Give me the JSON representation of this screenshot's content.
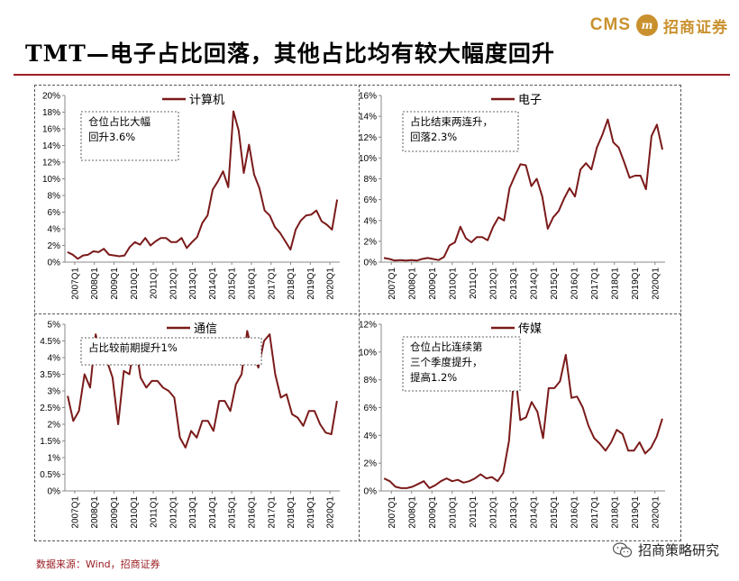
{
  "header": {
    "title": "TMT—电子占比回落，其他占比均有较大幅度回升",
    "brand_cms": "CMS",
    "brand_logo_text": "m",
    "brand_name": "招商证券"
  },
  "footer": {
    "source": "数据来源：Wind，招商证券",
    "wechat_name": "招商策略研究"
  },
  "colors": {
    "line": "#7b1a1a",
    "accent": "#9b1e23",
    "brand": "#c9912e"
  },
  "chart_data": [
    {
      "type": "line",
      "series_name": "计算机",
      "annotation": [
        "仓位占比大幅",
        "回升3.6%"
      ],
      "ylim": [
        0,
        20
      ],
      "ystep": 2,
      "yunit": "%",
      "x_ticks": [
        "2007Q1",
        "2008Q1",
        "2009Q1",
        "2010Q1",
        "2011Q1",
        "2012Q1",
        "2013Q1",
        "2014Q1",
        "2015Q1",
        "2016Q1",
        "2017Q1",
        "2018Q1",
        "2019Q1",
        "2020Q1"
      ],
      "values": [
        1.2,
        0.9,
        0.4,
        0.8,
        0.9,
        1.3,
        1.2,
        1.6,
        0.9,
        0.8,
        0.7,
        0.8,
        1.8,
        2.4,
        2.1,
        2.9,
        2.0,
        2.5,
        2.9,
        2.9,
        2.4,
        2.4,
        2.9,
        1.7,
        2.4,
        3.0,
        4.7,
        5.6,
        8.7,
        9.7,
        10.9,
        9.0,
        18.1,
        15.8,
        10.7,
        14.1,
        10.5,
        8.9,
        6.2,
        5.6,
        4.2,
        3.5,
        2.5,
        1.5,
        3.9,
        5.0,
        5.6,
        5.7,
        6.2,
        4.9,
        4.5,
        3.9,
        7.5
      ]
    },
    {
      "type": "line",
      "series_name": "电子",
      "annotation": [
        "占比结束两连升，",
        "回落2.3%"
      ],
      "ylim": [
        0,
        16
      ],
      "ystep": 2,
      "yunit": "%",
      "x_ticks": [
        "2007Q1",
        "2008Q1",
        "2009Q1",
        "2010Q1",
        "2011Q1",
        "2012Q1",
        "2013Q1",
        "2014Q1",
        "2015Q1",
        "2016Q1",
        "2017Q1",
        "2018Q1",
        "2019Q1",
        "2020Q1"
      ],
      "values": [
        0.4,
        0.3,
        0.15,
        0.2,
        0.15,
        0.2,
        0.15,
        0.3,
        0.4,
        0.3,
        0.2,
        0.5,
        1.6,
        1.9,
        3.4,
        2.3,
        1.9,
        2.4,
        2.4,
        2.1,
        3.4,
        4.3,
        4.0,
        7.1,
        8.3,
        9.4,
        9.3,
        7.3,
        8.0,
        6.3,
        3.2,
        4.3,
        4.9,
        6.1,
        7.1,
        6.3,
        8.9,
        9.5,
        8.9,
        11.0,
        12.2,
        13.7,
        11.5,
        11.0,
        9.6,
        8.1,
        8.3,
        8.3,
        7.0,
        12.1,
        13.2,
        10.8
      ]
    },
    {
      "type": "line",
      "series_name": "通信",
      "annotation": [
        "占比较前期提升1%"
      ],
      "ylim": [
        0,
        5
      ],
      "ystep": 0.5,
      "yunit": "%",
      "x_ticks": [
        "2007Q1",
        "2008Q1",
        "2009Q1",
        "2010Q1",
        "2011Q1",
        "2012Q1",
        "2013Q1",
        "2014Q1",
        "2015Q1",
        "2016Q1",
        "2017Q1",
        "2018Q1",
        "2019Q1",
        "2020Q1"
      ],
      "values": [
        2.85,
        2.1,
        2.4,
        3.5,
        3.1,
        4.7,
        3.9,
        3.9,
        3.4,
        2.0,
        3.6,
        3.5,
        4.5,
        3.4,
        3.1,
        3.3,
        3.3,
        3.1,
        3.0,
        2.8,
        1.6,
        1.3,
        1.8,
        1.6,
        2.1,
        2.1,
        1.8,
        2.7,
        2.7,
        2.4,
        3.2,
        3.5,
        4.8,
        4.1,
        3.7,
        4.5,
        4.7,
        3.5,
        2.8,
        2.9,
        2.3,
        2.2,
        1.95,
        2.4,
        2.4,
        2.0,
        1.75,
        1.7,
        2.7
      ]
    },
    {
      "type": "line",
      "series_name": "传媒",
      "annotation": [
        "仓位占比连续第",
        "三个季度提升，",
        "提高1.2%"
      ],
      "ylim": [
        0,
        12
      ],
      "ystep": 2,
      "yunit": "%",
      "x_ticks": [
        "2007Q1",
        "2008Q1",
        "2009Q1",
        "2010Q1",
        "2011Q1",
        "2012Q1",
        "2013Q1",
        "2014Q1",
        "2015Q1",
        "2016Q1",
        "2017Q1",
        "2018Q1",
        "2019Q1",
        "2020Q1"
      ],
      "values": [
        0.9,
        0.7,
        0.3,
        0.2,
        0.2,
        0.3,
        0.5,
        0.7,
        0.2,
        0.4,
        0.7,
        0.9,
        0.7,
        0.8,
        0.6,
        0.7,
        0.9,
        1.2,
        0.9,
        1.0,
        0.7,
        1.3,
        3.6,
        8.9,
        5.1,
        5.3,
        6.4,
        5.7,
        3.8,
        7.4,
        7.4,
        7.9,
        9.8,
        6.7,
        6.8,
        6.0,
        4.7,
        3.8,
        3.4,
        2.9,
        3.5,
        4.4,
        4.1,
        2.9,
        2.9,
        3.5,
        2.7,
        3.1,
        3.9,
        5.2
      ]
    }
  ]
}
